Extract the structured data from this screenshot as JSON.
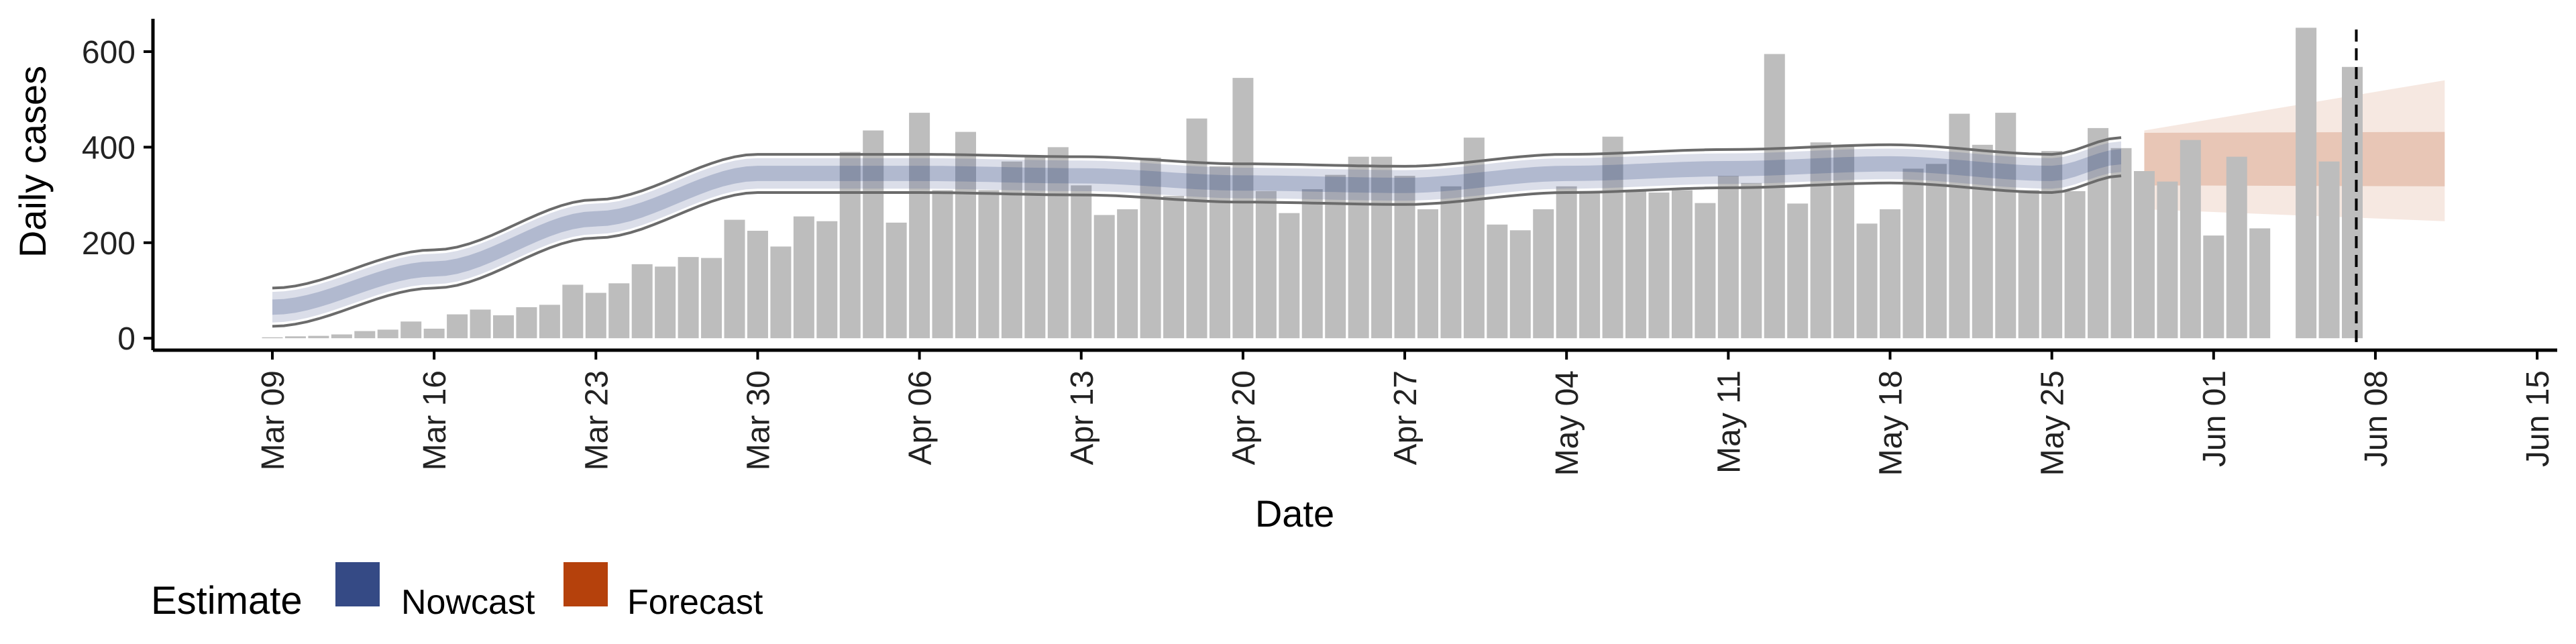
{
  "chart_data": {
    "type": "bar",
    "xlabel": "Date",
    "ylabel": "Daily cases",
    "ylim": [
      -25,
      680
    ],
    "yticks": [
      0,
      200,
      400,
      600
    ],
    "x_start": "2020-03-09",
    "xticks": [
      "Mar 09",
      "Mar 16",
      "Mar 23",
      "Mar 30",
      "Apr 06",
      "Apr 13",
      "Apr 20",
      "Apr 27",
      "May 04",
      "May 11",
      "May 18",
      "May 25",
      "Jun 01",
      "Jun 08",
      "Jun 15"
    ],
    "x_dates": [
      "2020-03-09",
      "2020-03-10",
      "2020-03-11",
      "2020-03-12",
      "2020-03-13",
      "2020-03-14",
      "2020-03-15",
      "2020-03-16",
      "2020-03-17",
      "2020-03-18",
      "2020-03-19",
      "2020-03-20",
      "2020-03-21",
      "2020-03-22",
      "2020-03-23",
      "2020-03-24",
      "2020-03-25",
      "2020-03-26",
      "2020-03-27",
      "2020-03-28",
      "2020-03-29",
      "2020-03-30",
      "2020-03-31",
      "2020-04-01",
      "2020-04-02",
      "2020-04-03",
      "2020-04-04",
      "2020-04-05",
      "2020-04-06",
      "2020-04-07",
      "2020-04-08",
      "2020-04-09",
      "2020-04-10",
      "2020-04-11",
      "2020-04-12",
      "2020-04-13",
      "2020-04-14",
      "2020-04-15",
      "2020-04-16",
      "2020-04-17",
      "2020-04-18",
      "2020-04-19",
      "2020-04-20",
      "2020-04-21",
      "2020-04-22",
      "2020-04-23",
      "2020-04-24",
      "2020-04-25",
      "2020-04-26",
      "2020-04-27",
      "2020-04-28",
      "2020-04-29",
      "2020-04-30",
      "2020-05-01",
      "2020-05-02",
      "2020-05-03",
      "2020-05-04",
      "2020-05-05",
      "2020-05-06",
      "2020-05-07",
      "2020-05-08",
      "2020-05-09",
      "2020-05-10",
      "2020-05-11",
      "2020-05-12",
      "2020-05-13",
      "2020-05-14",
      "2020-05-15",
      "2020-05-16",
      "2020-05-17",
      "2020-05-18",
      "2020-05-19",
      "2020-05-20",
      "2020-05-21",
      "2020-05-22",
      "2020-05-23",
      "2020-05-24",
      "2020-05-25",
      "2020-05-26",
      "2020-05-27",
      "2020-05-28",
      "2020-05-29",
      "2020-05-30",
      "2020-05-31",
      "2020-06-01",
      "2020-06-02",
      "2020-06-03",
      "2020-06-04",
      "2020-06-05",
      "2020-06-06",
      "2020-06-07"
    ],
    "series": [
      {
        "name": "Daily cases",
        "color": "#bdbdbd",
        "values": [
          2,
          4,
          5,
          8,
          15,
          18,
          35,
          20,
          50,
          60,
          48,
          65,
          70,
          112,
          95,
          115,
          155,
          150,
          170,
          168,
          248,
          225,
          192,
          255,
          245,
          390,
          435,
          242,
          472,
          310,
          432,
          310,
          370,
          380,
          400,
          320,
          258,
          270,
          378,
          298,
          460,
          360,
          545,
          308,
          262,
          312,
          342,
          380,
          380,
          340,
          270,
          318,
          420,
          238,
          226,
          270,
          318,
          308,
          422,
          308,
          305,
          310,
          283,
          340,
          325,
          595,
          282,
          410,
          405,
          240,
          270,
          355,
          365,
          470,
          405,
          472,
          310,
          392,
          308,
          440,
          398,
          350,
          328,
          415,
          215,
          380,
          230,
          0,
          650,
          370,
          568
        ]
      },
      {
        "name": "Nowcast",
        "color": "#354a85",
        "range": [
          "2020-03-09",
          "2020-05-28"
        ],
        "knots": [
          [
            "2020-03-09",
            65
          ],
          [
            "2020-03-16",
            145
          ],
          [
            "2020-03-23",
            250
          ],
          [
            "2020-03-30",
            345
          ],
          [
            "2020-04-06",
            345
          ],
          [
            "2020-04-13",
            340
          ],
          [
            "2020-04-20",
            325
          ],
          [
            "2020-04-27",
            320
          ],
          [
            "2020-05-04",
            345
          ],
          [
            "2020-05-11",
            355
          ],
          [
            "2020-05-18",
            365
          ],
          [
            "2020-05-25",
            345
          ],
          [
            "2020-05-28",
            380
          ]
        ],
        "band_inner_halfwidth": 16,
        "band_outer_halfwidth": 32,
        "band_line_halfwidth": 40
      },
      {
        "name": "Forecast",
        "color": "#b5410c",
        "range": [
          "2020-05-29",
          "2020-06-11"
        ],
        "median": 375,
        "inner": [
          [
            320,
            430
          ],
          [
            318,
            432
          ]
        ],
        "outer": [
          [
            270,
            435
          ],
          [
            245,
            540
          ]
        ]
      }
    ],
    "reference_line": {
      "date": "2020-06-07",
      "style": "dashed"
    },
    "legend": {
      "position": "bottom-left",
      "title": "Estimate",
      "items": [
        {
          "label": "Nowcast",
          "color": "#354a85"
        },
        {
          "label": "Forecast",
          "color": "#b5410c"
        }
      ]
    },
    "grid": false
  }
}
